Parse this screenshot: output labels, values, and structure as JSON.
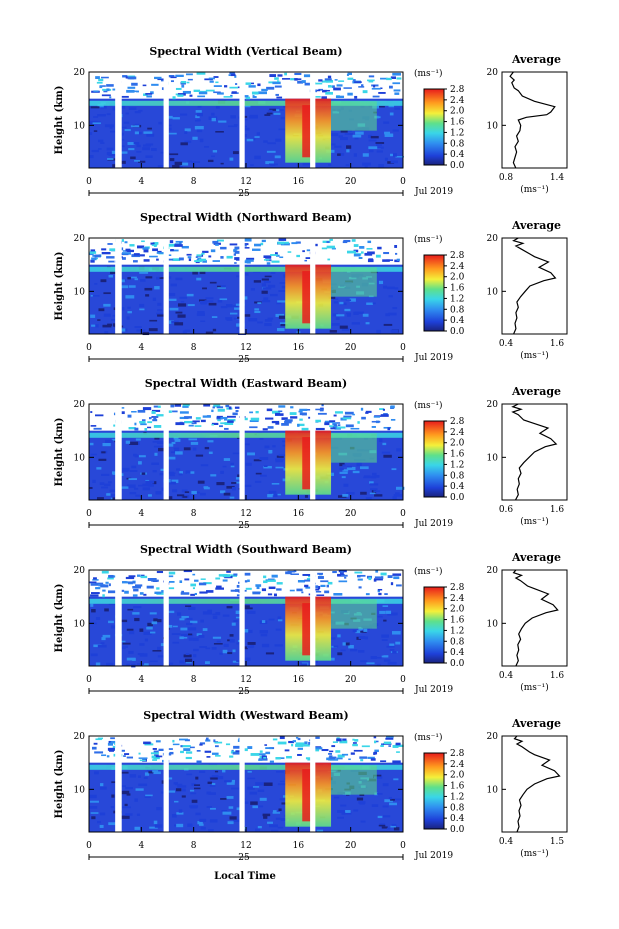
{
  "figure": {
    "xlabel": "Local Time",
    "day_label": "25",
    "month_label": "Jul 2019"
  },
  "colorbar_unit": "(ms⁻¹)",
  "avg_unit": "(ms⁻¹)",
  "avg_title": "Average",
  "panels": [
    {
      "title": "Spectral Width (Vertical Beam)",
      "ylabel": "Height (km)"
    },
    {
      "title": "Spectral Width (Northward Beam)",
      "ylabel": "Height (km)"
    },
    {
      "title": "Spectral Width (Eastward Beam)",
      "ylabel": "Height (km)"
    },
    {
      "title": "Spectral Width (Southward Beam)",
      "ylabel": "Height (km)"
    },
    {
      "title": "Spectral Width (Westward Beam)",
      "ylabel": "Height (km)"
    }
  ],
  "chart_data": [
    {
      "type": "heatmap",
      "title": "Spectral Width (Vertical Beam)",
      "xlabel": "Local Time",
      "ylabel": "Height (km)",
      "x_ticks": [
        "0",
        "4",
        "8",
        "12",
        "16",
        "20",
        "0"
      ],
      "y_ticks": [
        "10",
        "20"
      ],
      "xlim": [
        0,
        24
      ],
      "ylim": [
        2,
        20
      ],
      "colorbar": {
        "label": "(ms⁻¹)",
        "ticks": [
          "0.0",
          "0.4",
          "0.8",
          "1.2",
          "1.6",
          "2.0",
          "2.4",
          "2.8"
        ],
        "range": [
          0,
          2.8
        ]
      },
      "description_values": {
        "high_band_km": [
          11,
          15
        ],
        "high_time_h": [
          15,
          22
        ],
        "max_value": 2.8
      }
    },
    {
      "type": "line",
      "title": "Average",
      "xlabel": "(ms⁻¹)",
      "ylabel": "",
      "x_ticks": [
        "0.8",
        "1.4"
      ],
      "xlim": [
        0.7,
        1.5
      ],
      "y_ticks": [
        "10",
        "20"
      ],
      "ylim": [
        2,
        20
      ],
      "x": [
        0.87,
        0.84,
        0.86,
        0.88,
        0.86,
        0.9,
        0.88,
        0.92,
        0.93,
        0.9,
        1.0,
        1.25,
        1.3,
        1.35,
        1.1,
        0.95,
        0.9,
        0.85,
        0.82,
        0.85,
        0.8,
        0.84
      ],
      "y": [
        2,
        3,
        4,
        5,
        6,
        7,
        8,
        9,
        10,
        11,
        11.5,
        12,
        12.5,
        13.5,
        14.5,
        15.5,
        16.5,
        17,
        18,
        18.5,
        19.2,
        20
      ]
    },
    {
      "type": "heatmap",
      "title": "Spectral Width (Northward Beam)",
      "xlabel": "Local Time",
      "ylabel": "Height (km)",
      "x_ticks": [
        "0",
        "4",
        "8",
        "12",
        "16",
        "20",
        "0"
      ],
      "y_ticks": [
        "10",
        "20"
      ],
      "xlim": [
        0,
        24
      ],
      "ylim": [
        2,
        20
      ],
      "colorbar": {
        "label": "(ms⁻¹)",
        "ticks": [
          "0.0",
          "0.4",
          "0.8",
          "1.2",
          "1.6",
          "2.0",
          "2.4",
          "2.8"
        ],
        "range": [
          0,
          2.8
        ]
      }
    },
    {
      "type": "line",
      "title": "Average",
      "xlabel": "(ms⁻¹)",
      "ylabel": "",
      "x_ticks": [
        "0.4",
        "1.6"
      ],
      "xlim": [
        0.3,
        1.7
      ],
      "y_ticks": [
        "10",
        "20"
      ],
      "ylim": [
        2,
        20
      ],
      "x": [
        0.55,
        0.6,
        0.58,
        0.62,
        0.6,
        0.65,
        0.62,
        0.7,
        0.8,
        0.9,
        1.2,
        1.45,
        1.35,
        1.1,
        1.3,
        1.0,
        0.9,
        0.7,
        0.6,
        0.75,
        0.55,
        0.65
      ],
      "y": [
        2,
        3,
        4,
        5,
        6,
        7,
        8,
        9,
        10,
        11,
        12,
        12.5,
        13.5,
        14.5,
        15.5,
        16.5,
        17,
        18,
        18.5,
        19,
        19.5,
        20
      ]
    },
    {
      "type": "heatmap",
      "title": "Spectral Width (Eastward Beam)",
      "xlabel": "Local Time",
      "ylabel": "Height (km)",
      "x_ticks": [
        "0",
        "4",
        "8",
        "12",
        "16",
        "20",
        "0"
      ],
      "y_ticks": [
        "10",
        "20"
      ],
      "xlim": [
        0,
        24
      ],
      "ylim": [
        2,
        20
      ],
      "colorbar": {
        "label": "(ms⁻¹)",
        "ticks": [
          "0.0",
          "0.4",
          "0.8",
          "1.2",
          "1.6",
          "2.0",
          "2.4",
          "2.8"
        ],
        "range": [
          0,
          2.8
        ]
      }
    },
    {
      "type": "line",
      "title": "Average",
      "xlabel": "(ms⁻¹)",
      "ylabel": "",
      "x_ticks": [
        "0.6",
        "1.6"
      ],
      "xlim": [
        0.5,
        1.7
      ],
      "y_ticks": [
        "10",
        "20"
      ],
      "ylim": [
        2,
        20
      ],
      "x": [
        0.75,
        0.8,
        0.78,
        0.82,
        0.8,
        0.85,
        0.82,
        0.9,
        1.0,
        1.1,
        1.3,
        1.5,
        1.4,
        1.2,
        1.35,
        1.05,
        0.9,
        0.8,
        0.7,
        0.85,
        0.7,
        0.8
      ],
      "y": [
        2,
        3,
        4,
        5,
        6,
        7,
        8,
        9,
        10,
        11,
        12,
        12.5,
        13.5,
        14.5,
        15.5,
        16.5,
        17,
        18,
        18.5,
        19,
        19.5,
        20
      ]
    },
    {
      "type": "heatmap",
      "title": "Spectral Width (Southward Beam)",
      "xlabel": "Local Time",
      "ylabel": "Height (km)",
      "x_ticks": [
        "0",
        "4",
        "8",
        "12",
        "16",
        "20",
        "0"
      ],
      "y_ticks": [
        "10",
        "20"
      ],
      "xlim": [
        0,
        24
      ],
      "ylim": [
        2,
        20
      ],
      "colorbar": {
        "label": "(ms⁻¹)",
        "ticks": [
          "0.0",
          "0.4",
          "0.8",
          "1.2",
          "1.6",
          "2.0",
          "2.4",
          "2.8"
        ],
        "range": [
          0,
          2.8
        ]
      }
    },
    {
      "type": "line",
      "title": "Average",
      "xlabel": "(ms⁻¹)",
      "ylabel": "",
      "x_ticks": [
        "0.4",
        "1.6"
      ],
      "xlim": [
        0.3,
        1.7
      ],
      "y_ticks": [
        "10",
        "20"
      ],
      "ylim": [
        2,
        20
      ],
      "x": [
        0.6,
        0.65,
        0.62,
        0.66,
        0.64,
        0.7,
        0.66,
        0.72,
        0.8,
        0.95,
        1.25,
        1.5,
        1.4,
        1.15,
        1.3,
        1.0,
        0.85,
        0.7,
        0.6,
        0.72,
        0.55,
        0.6
      ],
      "y": [
        2,
        3,
        4,
        5,
        6,
        7,
        8,
        9,
        10,
        11,
        12,
        12.5,
        13.5,
        14.5,
        15.5,
        16.5,
        17,
        18,
        18.5,
        19,
        19.5,
        20
      ]
    },
    {
      "type": "heatmap",
      "title": "Spectral Width (Westward Beam)",
      "xlabel": "Local Time",
      "ylabel": "Height (km)",
      "x_ticks": [
        "0",
        "4",
        "8",
        "12",
        "16",
        "20",
        "0"
      ],
      "y_ticks": [
        "10",
        "20"
      ],
      "xlim": [
        0,
        24
      ],
      "ylim": [
        2,
        20
      ],
      "colorbar": {
        "label": "(ms⁻¹)",
        "ticks": [
          "0.0",
          "0.4",
          "0.8",
          "1.2",
          "1.6",
          "2.0",
          "2.4",
          "2.8"
        ],
        "range": [
          0,
          2.8
        ]
      }
    },
    {
      "type": "line",
      "title": "Average",
      "xlabel": "(ms⁻¹)",
      "ylabel": "",
      "x_ticks": [
        "0.4",
        "1.5"
      ],
      "xlim": [
        0.3,
        1.6
      ],
      "y_ticks": [
        "10",
        "20"
      ],
      "ylim": [
        2,
        20
      ],
      "x": [
        0.6,
        0.64,
        0.62,
        0.66,
        0.64,
        0.68,
        0.65,
        0.72,
        0.8,
        0.95,
        1.2,
        1.45,
        1.35,
        1.1,
        1.25,
        0.95,
        0.85,
        0.7,
        0.6,
        0.7,
        0.55,
        0.6
      ],
      "y": [
        2,
        3,
        4,
        5,
        6,
        7,
        8,
        9,
        10,
        11,
        12,
        12.5,
        13.5,
        14.5,
        15.5,
        16.5,
        17,
        18,
        18.5,
        19,
        19.5,
        20
      ]
    }
  ]
}
